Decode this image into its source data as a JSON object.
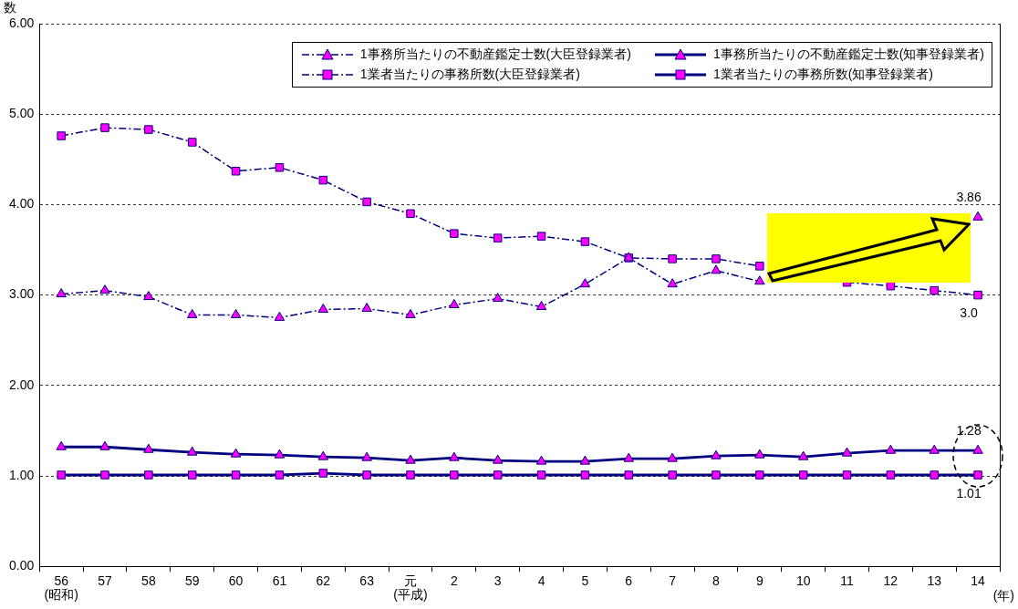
{
  "chart_data": {
    "type": "line",
    "categories": [
      "56\n(昭和)",
      "57",
      "58",
      "59",
      "60",
      "61",
      "62",
      "63",
      "元\n(平成)",
      "2",
      "3",
      "4",
      "5",
      "6",
      "7",
      "8",
      "9",
      "10",
      "11",
      "12",
      "13",
      "14"
    ],
    "ylabel": "数",
    "xlabel": "(年)",
    "series": [
      {
        "name": "1事務所当たりの不動産鑑定士数(大臣登録業者)",
        "color": "#000080",
        "marker": "triangle",
        "line_style": "dashed",
        "values": [
          3.01,
          3.05,
          2.98,
          2.78,
          2.78,
          2.75,
          2.84,
          2.85,
          2.78,
          2.89,
          2.96,
          2.87,
          3.12,
          3.41,
          3.12,
          3.27,
          3.15,
          null,
          null,
          null,
          null,
          3.86
        ],
        "value_labels": [
          null,
          null,
          null,
          null,
          null,
          null,
          null,
          null,
          null,
          null,
          null,
          null,
          null,
          null,
          null,
          null,
          null,
          null,
          null,
          null,
          null,
          "3.86"
        ]
      },
      {
        "name": "1事務所当たりの不動産鑑定士数(知事登録業者)",
        "color": "#000080",
        "marker": "triangle",
        "line_style": "solid",
        "values": [
          1.32,
          1.32,
          1.29,
          1.26,
          1.24,
          1.23,
          1.21,
          1.2,
          1.17,
          1.2,
          1.17,
          1.16,
          1.16,
          1.19,
          1.19,
          1.22,
          1.23,
          1.21,
          1.25,
          1.28,
          1.28,
          1.28
        ],
        "value_labels": [
          null,
          null,
          null,
          null,
          null,
          null,
          null,
          null,
          null,
          null,
          null,
          null,
          null,
          null,
          null,
          null,
          null,
          null,
          null,
          null,
          null,
          "1.28"
        ]
      },
      {
        "name": "1業者当たりの事務所数(大臣登録業者)",
        "color": "#000080",
        "marker": "square",
        "line_style": "dashed",
        "values": [
          4.76,
          4.85,
          4.83,
          4.69,
          4.37,
          4.41,
          4.27,
          4.03,
          3.9,
          3.68,
          3.63,
          3.65,
          3.59,
          3.41,
          3.4,
          3.4,
          3.32,
          null,
          3.14,
          3.1,
          3.05,
          3.0
        ],
        "value_labels": [
          null,
          null,
          null,
          null,
          null,
          null,
          null,
          null,
          null,
          null,
          null,
          null,
          null,
          null,
          null,
          null,
          null,
          null,
          null,
          null,
          null,
          "3.0"
        ]
      },
      {
        "name": "1業者当たりの事務所数(知事登録業者)",
        "color": "#000080",
        "marker": "square",
        "line_style": "solid",
        "values": [
          1.01,
          1.01,
          1.01,
          1.01,
          1.01,
          1.01,
          1.03,
          1.01,
          1.01,
          1.01,
          1.01,
          1.01,
          1.01,
          1.01,
          1.01,
          1.01,
          1.01,
          1.01,
          1.01,
          1.01,
          1.01,
          1.01
        ],
        "value_labels": [
          null,
          null,
          null,
          null,
          null,
          null,
          null,
          null,
          null,
          null,
          null,
          null,
          null,
          null,
          null,
          null,
          null,
          null,
          null,
          null,
          null,
          "1.01"
        ]
      }
    ],
    "ylim": [
      0,
      6
    ],
    "yticks": [
      {
        "value": 0,
        "label": "0.00"
      },
      {
        "value": 1,
        "label": "1.00"
      },
      {
        "value": 2,
        "label": "2.00"
      },
      {
        "value": 3,
        "label": "3.00"
      },
      {
        "value": 4,
        "label": "4.00"
      },
      {
        "value": 5,
        "label": "5.00"
      },
      {
        "value": 6,
        "label": "6.00"
      }
    ],
    "grid": "y",
    "legend": "top right"
  }
}
